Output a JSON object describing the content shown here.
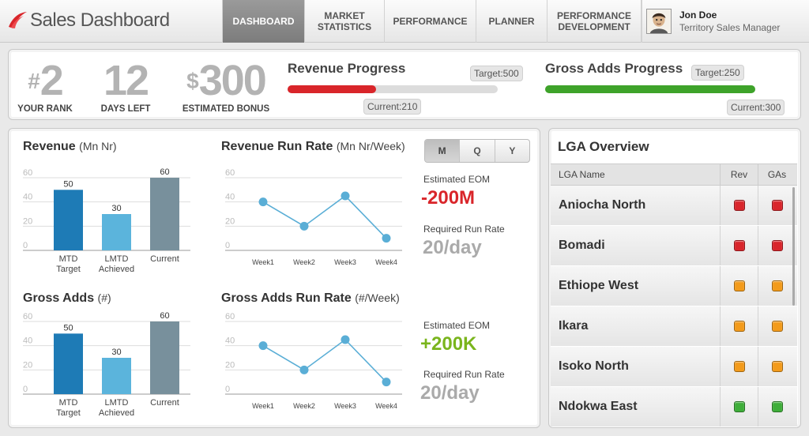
{
  "header": {
    "app_title": "Sales Dashboard",
    "tabs": [
      {
        "label": "DASHBOARD",
        "active": true
      },
      {
        "label": "MARKET STATISTICS",
        "active": false
      },
      {
        "label": "PERFORMANCE",
        "active": false
      },
      {
        "label": "PLANNER",
        "active": false
      },
      {
        "label": "PERFORMANCE DEVELOPMENT",
        "active": false
      }
    ],
    "user": {
      "name": "Jon Doe",
      "role": "Territory Sales Manager"
    }
  },
  "kpis": {
    "rank": {
      "prefix": "#",
      "value": "2",
      "label": "YOUR RANK"
    },
    "days_left": {
      "value": "12",
      "label": "DAYS LEFT"
    },
    "bonus": {
      "prefix": "$",
      "value": "300",
      "label": "ESTIMATED BONUS"
    }
  },
  "revenue_progress": {
    "title": "Revenue Progress",
    "target_label": "Target:500",
    "current_label": "Current:210",
    "target": 500,
    "current": 210,
    "color": "#d9252a"
  },
  "gross_adds_progress": {
    "title": "Gross Adds Progress",
    "target_label": "Target:250",
    "current_label": "Current:300",
    "target": 250,
    "current": 300,
    "color": "#3ea32a"
  },
  "period_toggle": {
    "options": [
      "M",
      "Q",
      "Y"
    ],
    "selected": "M"
  },
  "revenue": {
    "title": "Revenue",
    "unit": "(Mn Nr)",
    "run_rate_title": "Revenue Run Rate",
    "run_rate_unit": "(Mn Nr/Week)",
    "eom_label": "Estimated EOM",
    "eom_value": "-200M",
    "eom_color": "#d9252a",
    "rr_label": "Required Run Rate",
    "rr_value": "20/day"
  },
  "gross_adds": {
    "title": "Gross Adds",
    "unit": "(#)",
    "run_rate_title": "Gross Adds Run Rate",
    "run_rate_unit": "(#/Week)",
    "eom_label": "Estimated EOM",
    "eom_value": "+200K",
    "eom_color": "#7ab51d",
    "rr_label": "Required Run Rate",
    "rr_value": "20/day"
  },
  "chart_data": [
    {
      "type": "bar",
      "id": "revenue-bars",
      "categories": [
        "MTD Target",
        "LMTD Achieved",
        "Current"
      ],
      "values": [
        50,
        30,
        60
      ],
      "colors": [
        "#1e7bb6",
        "#5bb4dc",
        "#78909c"
      ],
      "ylim": [
        0,
        60
      ],
      "yticks": [
        0,
        20,
        40,
        60
      ],
      "grid": true
    },
    {
      "type": "line",
      "id": "revenue-runrate",
      "x": [
        "Week1",
        "Week2",
        "Week3",
        "Week4"
      ],
      "values": [
        40,
        20,
        45,
        10
      ],
      "color": "#5aaed6",
      "ylim": [
        0,
        60
      ],
      "yticks": [
        0,
        20,
        40,
        60
      ],
      "grid": true
    },
    {
      "type": "bar",
      "id": "grossadds-bars",
      "categories": [
        "MTD Target",
        "LMTD Achieved",
        "Current"
      ],
      "values": [
        50,
        30,
        60
      ],
      "colors": [
        "#1e7bb6",
        "#5bb4dc",
        "#78909c"
      ],
      "ylim": [
        0,
        60
      ],
      "yticks": [
        0,
        20,
        40,
        60
      ],
      "grid": true
    },
    {
      "type": "line",
      "id": "grossadds-runrate",
      "x": [
        "Week1",
        "Week2",
        "Week3",
        "Week4"
      ],
      "values": [
        40,
        20,
        45,
        10
      ],
      "color": "#5aaed6",
      "ylim": [
        0,
        60
      ],
      "yticks": [
        0,
        20,
        40,
        60
      ],
      "grid": true
    }
  ],
  "lga": {
    "title": "LGA Overview",
    "columns": [
      "LGA Name",
      "Rev",
      "GAs"
    ],
    "status_colors": {
      "red": "#d9262c",
      "orange": "#f39b1b",
      "green": "#3fae3a"
    },
    "rows": [
      {
        "name": "Aniocha North",
        "rev": "red",
        "gas": "red"
      },
      {
        "name": "Bomadi",
        "rev": "red",
        "gas": "red"
      },
      {
        "name": "Ethiope West",
        "rev": "orange",
        "gas": "orange"
      },
      {
        "name": "Ikara",
        "rev": "orange",
        "gas": "orange"
      },
      {
        "name": "Isoko North",
        "rev": "orange",
        "gas": "orange"
      },
      {
        "name": "Ndokwa East",
        "rev": "green",
        "gas": "green"
      }
    ]
  }
}
